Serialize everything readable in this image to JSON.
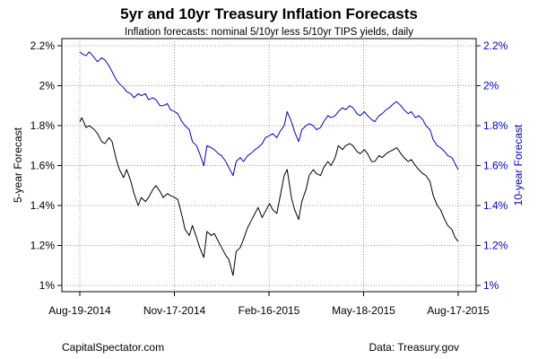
{
  "header": {
    "title": "5yr and 10yr Treasury Inflation Forecasts",
    "subtitle": "Inflation forecasts: nominal 5/10yr less 5/10yr TIPS yields, daily"
  },
  "footer": {
    "left": "CapitalSpectator.com",
    "right": "Data: Treasury.gov"
  },
  "colors": {
    "series_5yr": "#000000",
    "series_10yr": "#0000cc",
    "right_axis": "#0000cc",
    "grid": "#999999"
  },
  "chart_data": {
    "type": "line",
    "title": "5yr and 10yr Treasury Inflation Forecasts",
    "subtitle": "Inflation forecasts: nominal 5/10yr less 5/10yr TIPS yields, daily",
    "y_left_label": "5-year Forecast",
    "y_right_label": "10-year Forecast",
    "ylim": [
      1.0,
      2.2
    ],
    "y_ticks": [
      "1%",
      "1.2%",
      "1.4%",
      "1.6%",
      "1.8%",
      "2%",
      "2.2%"
    ],
    "x_ticks": [
      "Aug-19-2014",
      "Nov-17-2014",
      "Feb-16-2015",
      "May-18-2015",
      "Aug-17-2015"
    ],
    "grid": true,
    "series": [
      {
        "axis": "left",
        "points": [
          [
            "2014-08-19",
            1.82
          ],
          [
            "2014-08-21",
            1.84
          ],
          [
            "2014-08-25",
            1.79
          ],
          [
            "2014-08-28",
            1.8
          ],
          [
            "2014-09-02",
            1.78
          ],
          [
            "2014-09-05",
            1.76
          ],
          [
            "2014-09-09",
            1.72
          ],
          [
            "2014-09-12",
            1.71
          ],
          [
            "2014-09-16",
            1.74
          ],
          [
            "2014-09-19",
            1.72
          ],
          [
            "2014-09-23",
            1.63
          ],
          [
            "2014-09-26",
            1.58
          ],
          [
            "2014-09-30",
            1.54
          ],
          [
            "2014-10-03",
            1.58
          ],
          [
            "2014-10-07",
            1.52
          ],
          [
            "2014-10-10",
            1.46
          ],
          [
            "2014-10-14",
            1.4
          ],
          [
            "2014-10-17",
            1.44
          ],
          [
            "2014-10-21",
            1.42
          ],
          [
            "2014-10-24",
            1.44
          ],
          [
            "2014-10-28",
            1.48
          ],
          [
            "2014-10-31",
            1.5
          ],
          [
            "2014-11-04",
            1.47
          ],
          [
            "2014-11-07",
            1.44
          ],
          [
            "2014-11-11",
            1.46
          ],
          [
            "2014-11-14",
            1.45
          ],
          [
            "2014-11-18",
            1.44
          ],
          [
            "2014-11-21",
            1.43
          ],
          [
            "2014-11-25",
            1.35
          ],
          [
            "2014-11-28",
            1.28
          ],
          [
            "2014-12-02",
            1.25
          ],
          [
            "2014-12-05",
            1.3
          ],
          [
            "2014-12-09",
            1.24
          ],
          [
            "2014-12-12",
            1.19
          ],
          [
            "2014-12-16",
            1.14
          ],
          [
            "2014-12-19",
            1.27
          ],
          [
            "2014-12-23",
            1.25
          ],
          [
            "2014-12-26",
            1.26
          ],
          [
            "2014-12-30",
            1.22
          ],
          [
            "2015-01-02",
            1.19
          ],
          [
            "2015-01-06",
            1.15
          ],
          [
            "2015-01-09",
            1.13
          ],
          [
            "2015-01-13",
            1.05
          ],
          [
            "2015-01-16",
            1.17
          ],
          [
            "2015-01-20",
            1.19
          ],
          [
            "2015-01-23",
            1.23
          ],
          [
            "2015-01-27",
            1.29
          ],
          [
            "2015-01-30",
            1.32
          ],
          [
            "2015-02-03",
            1.36
          ],
          [
            "2015-02-06",
            1.39
          ],
          [
            "2015-02-10",
            1.34
          ],
          [
            "2015-02-13",
            1.37
          ],
          [
            "2015-02-17",
            1.41
          ],
          [
            "2015-02-20",
            1.38
          ],
          [
            "2015-02-24",
            1.36
          ],
          [
            "2015-02-27",
            1.44
          ],
          [
            "2015-03-03",
            1.55
          ],
          [
            "2015-03-06",
            1.58
          ],
          [
            "2015-03-10",
            1.44
          ],
          [
            "2015-03-13",
            1.38
          ],
          [
            "2015-03-17",
            1.33
          ],
          [
            "2015-03-20",
            1.42
          ],
          [
            "2015-03-24",
            1.48
          ],
          [
            "2015-03-27",
            1.55
          ],
          [
            "2015-03-31",
            1.58
          ],
          [
            "2015-04-03",
            1.56
          ],
          [
            "2015-04-07",
            1.55
          ],
          [
            "2015-04-10",
            1.59
          ],
          [
            "2015-04-14",
            1.62
          ],
          [
            "2015-04-17",
            1.6
          ],
          [
            "2015-04-21",
            1.64
          ],
          [
            "2015-04-24",
            1.7
          ],
          [
            "2015-04-28",
            1.68
          ],
          [
            "2015-05-01",
            1.7
          ],
          [
            "2015-05-05",
            1.71
          ],
          [
            "2015-05-08",
            1.7
          ],
          [
            "2015-05-12",
            1.67
          ],
          [
            "2015-05-15",
            1.66
          ],
          [
            "2015-05-19",
            1.68
          ],
          [
            "2015-05-22",
            1.66
          ],
          [
            "2015-05-26",
            1.62
          ],
          [
            "2015-05-29",
            1.62
          ],
          [
            "2015-06-02",
            1.65
          ],
          [
            "2015-06-05",
            1.64
          ],
          [
            "2015-06-09",
            1.66
          ],
          [
            "2015-06-12",
            1.67
          ],
          [
            "2015-06-16",
            1.68
          ],
          [
            "2015-06-19",
            1.69
          ],
          [
            "2015-06-23",
            1.66
          ],
          [
            "2015-06-26",
            1.64
          ],
          [
            "2015-06-30",
            1.62
          ],
          [
            "2015-07-03",
            1.63
          ],
          [
            "2015-07-07",
            1.6
          ],
          [
            "2015-07-10",
            1.58
          ],
          [
            "2015-07-14",
            1.56
          ],
          [
            "2015-07-17",
            1.55
          ],
          [
            "2015-07-21",
            1.52
          ],
          [
            "2015-07-24",
            1.45
          ],
          [
            "2015-07-28",
            1.4
          ],
          [
            "2015-07-31",
            1.38
          ],
          [
            "2015-08-04",
            1.33
          ],
          [
            "2015-08-07",
            1.3
          ],
          [
            "2015-08-11",
            1.28
          ],
          [
            "2015-08-14",
            1.24
          ],
          [
            "2015-08-17",
            1.22
          ]
        ]
      },
      {
        "axis": "right",
        "points": [
          [
            "2014-08-19",
            2.17
          ],
          [
            "2014-08-21",
            2.16
          ],
          [
            "2014-08-25",
            2.15
          ],
          [
            "2014-08-28",
            2.17
          ],
          [
            "2014-09-02",
            2.14
          ],
          [
            "2014-09-05",
            2.12
          ],
          [
            "2014-09-09",
            2.14
          ],
          [
            "2014-09-12",
            2.13
          ],
          [
            "2014-09-16",
            2.1
          ],
          [
            "2014-09-19",
            2.07
          ],
          [
            "2014-09-23",
            2.03
          ],
          [
            "2014-09-26",
            2.01
          ],
          [
            "2014-09-30",
            1.99
          ],
          [
            "2014-10-03",
            1.97
          ],
          [
            "2014-10-07",
            1.96
          ],
          [
            "2014-10-10",
            1.94
          ],
          [
            "2014-10-14",
            1.96
          ],
          [
            "2014-10-17",
            1.95
          ],
          [
            "2014-10-21",
            1.96
          ],
          [
            "2014-10-24",
            1.93
          ],
          [
            "2014-10-28",
            1.94
          ],
          [
            "2014-10-31",
            1.93
          ],
          [
            "2014-11-04",
            1.9
          ],
          [
            "2014-11-07",
            1.9
          ],
          [
            "2014-11-11",
            1.91
          ],
          [
            "2014-11-14",
            1.88
          ],
          [
            "2014-11-18",
            1.87
          ],
          [
            "2014-11-21",
            1.86
          ],
          [
            "2014-11-25",
            1.82
          ],
          [
            "2014-11-28",
            1.8
          ],
          [
            "2014-12-02",
            1.78
          ],
          [
            "2014-12-05",
            1.72
          ],
          [
            "2014-12-09",
            1.7
          ],
          [
            "2014-12-12",
            1.66
          ],
          [
            "2014-12-16",
            1.6
          ],
          [
            "2014-12-19",
            1.7
          ],
          [
            "2014-12-23",
            1.69
          ],
          [
            "2014-12-26",
            1.68
          ],
          [
            "2014-12-30",
            1.66
          ],
          [
            "2015-01-02",
            1.65
          ],
          [
            "2015-01-06",
            1.62
          ],
          [
            "2015-01-09",
            1.59
          ],
          [
            "2015-01-13",
            1.55
          ],
          [
            "2015-01-16",
            1.62
          ],
          [
            "2015-01-20",
            1.64
          ],
          [
            "2015-01-23",
            1.62
          ],
          [
            "2015-01-27",
            1.65
          ],
          [
            "2015-01-30",
            1.66
          ],
          [
            "2015-02-03",
            1.68
          ],
          [
            "2015-02-06",
            1.69
          ],
          [
            "2015-02-10",
            1.71
          ],
          [
            "2015-02-13",
            1.74
          ],
          [
            "2015-02-17",
            1.75
          ],
          [
            "2015-02-20",
            1.76
          ],
          [
            "2015-02-24",
            1.74
          ],
          [
            "2015-02-27",
            1.77
          ],
          [
            "2015-03-03",
            1.8
          ],
          [
            "2015-03-06",
            1.87
          ],
          [
            "2015-03-10",
            1.82
          ],
          [
            "2015-03-13",
            1.77
          ],
          [
            "2015-03-17",
            1.72
          ],
          [
            "2015-03-20",
            1.78
          ],
          [
            "2015-03-24",
            1.8
          ],
          [
            "2015-03-27",
            1.81
          ],
          [
            "2015-03-31",
            1.8
          ],
          [
            "2015-04-03",
            1.78
          ],
          [
            "2015-04-07",
            1.79
          ],
          [
            "2015-04-10",
            1.82
          ],
          [
            "2015-04-14",
            1.85
          ],
          [
            "2015-04-17",
            1.84
          ],
          [
            "2015-04-21",
            1.85
          ],
          [
            "2015-04-24",
            1.87
          ],
          [
            "2015-04-28",
            1.89
          ],
          [
            "2015-05-01",
            1.88
          ],
          [
            "2015-05-05",
            1.9
          ],
          [
            "2015-05-08",
            1.89
          ],
          [
            "2015-05-12",
            1.86
          ],
          [
            "2015-05-15",
            1.85
          ],
          [
            "2015-05-19",
            1.87
          ],
          [
            "2015-05-22",
            1.85
          ],
          [
            "2015-05-26",
            1.83
          ],
          [
            "2015-05-29",
            1.82
          ],
          [
            "2015-06-02",
            1.85
          ],
          [
            "2015-06-05",
            1.86
          ],
          [
            "2015-06-09",
            1.88
          ],
          [
            "2015-06-12",
            1.89
          ],
          [
            "2015-06-16",
            1.91
          ],
          [
            "2015-06-19",
            1.92
          ],
          [
            "2015-06-23",
            1.9
          ],
          [
            "2015-06-26",
            1.88
          ],
          [
            "2015-06-30",
            1.86
          ],
          [
            "2015-07-03",
            1.87
          ],
          [
            "2015-07-07",
            1.84
          ],
          [
            "2015-07-10",
            1.85
          ],
          [
            "2015-07-14",
            1.83
          ],
          [
            "2015-07-17",
            1.8
          ],
          [
            "2015-07-21",
            1.78
          ],
          [
            "2015-07-24",
            1.73
          ],
          [
            "2015-07-28",
            1.7
          ],
          [
            "2015-07-31",
            1.69
          ],
          [
            "2015-08-04",
            1.67
          ],
          [
            "2015-08-07",
            1.65
          ],
          [
            "2015-08-11",
            1.64
          ],
          [
            "2015-08-14",
            1.61
          ],
          [
            "2015-08-17",
            1.58
          ]
        ]
      }
    ]
  }
}
